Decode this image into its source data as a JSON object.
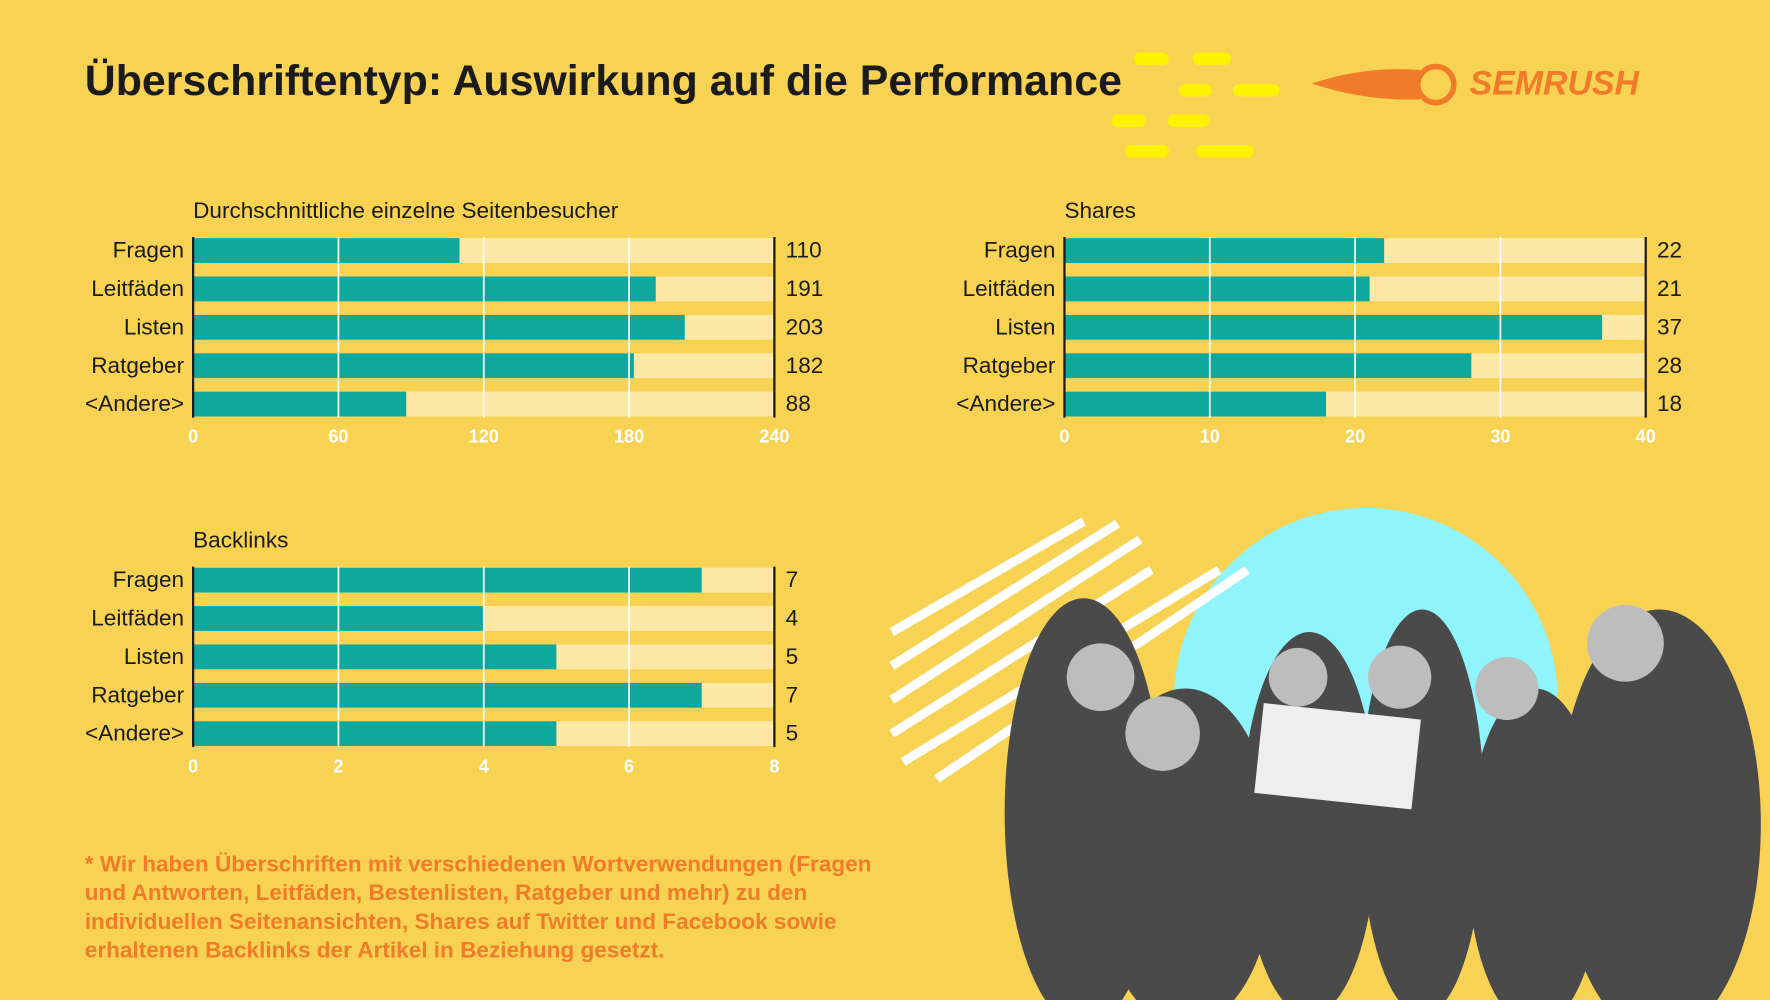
{
  "title": "Überschriftentyp: Auswirkung auf die Performance",
  "logo": "SEMRUSH",
  "note": [
    "* Wir haben Überschriften mit verschiedenen Wortverwendungen (Fragen",
    "und Antworten, Leitfäden, Bestenlisten, Ratgeber und mehr) zu den",
    "individuellen Seitenansichten, Shares auf Twitter und Facebook sowie",
    "erhaltenen Backlinks der Artikel in Beziehung gesetzt."
  ],
  "chart_data": [
    {
      "type": "bar",
      "orientation": "horizontal",
      "title": "Durchschnittliche einzelne Seitenbesucher",
      "categories": [
        "Fragen",
        "Leitfäden",
        "Listen",
        "Ratgeber",
        "<Andere>"
      ],
      "values": [
        110,
        191,
        203,
        182,
        88
      ],
      "color": "#10a89c",
      "background_color": "#fde8a7",
      "xlim": [
        0,
        240
      ],
      "xticks": [
        0,
        60,
        120,
        180,
        240
      ],
      "grid": true
    },
    {
      "type": "bar",
      "orientation": "horizontal",
      "title": "Shares",
      "categories": [
        "Fragen",
        "Leitfäden",
        "Listen",
        "Ratgeber",
        "<Andere>"
      ],
      "values": [
        22,
        21,
        37,
        28,
        18
      ],
      "color": "#10a89c",
      "background_color": "#fde8a7",
      "xlim": [
        0,
        40
      ],
      "xticks": [
        0,
        10,
        20,
        30,
        40
      ],
      "grid": true
    },
    {
      "type": "bar",
      "orientation": "horizontal",
      "title": "Backlinks",
      "categories": [
        "Fragen",
        "Leitfäden",
        "Listen",
        "Ratgeber",
        "<Andere>"
      ],
      "values": [
        7,
        4,
        5,
        7,
        5
      ],
      "color": "#10a89c",
      "background_color": "#fde8a7",
      "xlim": [
        0,
        8
      ],
      "xticks": [
        0,
        2,
        4,
        6,
        8
      ],
      "grid": true
    }
  ]
}
